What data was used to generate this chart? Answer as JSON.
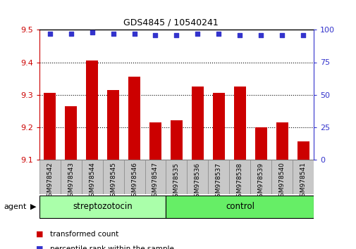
{
  "title": "GDS4845 / 10540241",
  "samples": [
    "GSM978542",
    "GSM978543",
    "GSM978544",
    "GSM978545",
    "GSM978546",
    "GSM978547",
    "GSM978535",
    "GSM978536",
    "GSM978537",
    "GSM978538",
    "GSM978539",
    "GSM978540",
    "GSM978541"
  ],
  "bar_values": [
    9.305,
    9.265,
    9.405,
    9.315,
    9.355,
    9.215,
    9.22,
    9.325,
    9.305,
    9.325,
    9.2,
    9.215,
    9.155
  ],
  "percentile_values": [
    97,
    97,
    98,
    97,
    97,
    96,
    96,
    97,
    97,
    96,
    96,
    96,
    96
  ],
  "bar_bottom": 9.1,
  "ylim_left": [
    9.1,
    9.5
  ],
  "ylim_right": [
    0,
    100
  ],
  "yticks_left": [
    9.1,
    9.2,
    9.3,
    9.4,
    9.5
  ],
  "yticks_right": [
    0,
    25,
    50,
    75,
    100
  ],
  "bar_color": "#cc0000",
  "dot_color": "#3333cc",
  "grid_color": "#000000",
  "bg_color": "#ffffff",
  "tick_cell_color": "#c8c8c8",
  "tick_border_color": "#888888",
  "strep_color": "#aaffaa",
  "control_color": "#66ee66",
  "strep_label": "streptozotocin",
  "control_label": "control",
  "agent_label": "agent",
  "legend_bar_label": "transformed count",
  "legend_dot_label": "percentile rank within the sample",
  "n_strep": 6,
  "n_control": 7,
  "bar_width": 0.55
}
